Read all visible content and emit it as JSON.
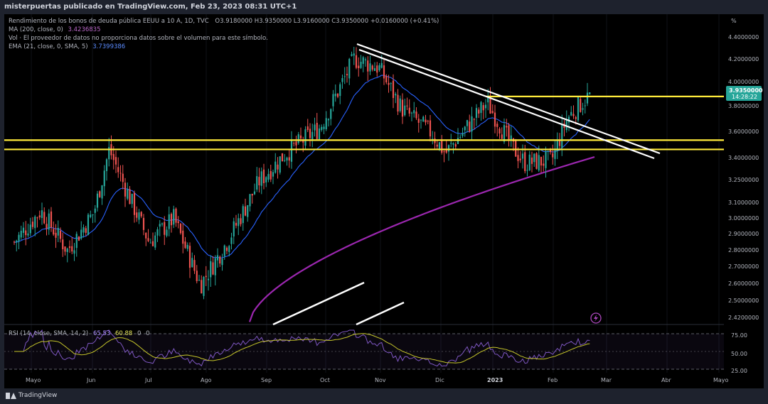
{
  "header": {
    "publisher_line": "misterpuertas publicado en TradingView.com, Feb 23, 2023 08:31 UTC+1"
  },
  "legend": {
    "title": "Rendimiento de los bonos de deuda pública EEUU a 10 A, 1D, TVC",
    "ohlc": "O3.9180000  H3.9350000  L3.9160000  C3.9350000  +0.0160000 (+0.41%)",
    "ma_label": "MA (200, close, 0)",
    "ma_value": "3.4236835",
    "vol_label": "Vol · El proveedor de datos no proporciona datos sobre el volumen para este símbolo.",
    "ema_label": "EMA (21, close, 0, SMA, 5)",
    "ema_value": "3.7399386",
    "rsi_label": "RSI (14, close, SMA, 14, 2)",
    "rsi_value": "65.53",
    "rsi_ma_value": "60.88",
    "rsi_extra_1": "0",
    "rsi_extra_2": "0"
  },
  "price_axis": {
    "unit": "%",
    "labels": [
      "4.4000000",
      "4.2000000",
      "4.0000000",
      "3.8000000",
      "3.6000000",
      "3.4000000",
      "3.2500000",
      "3.1000000",
      "3.0000000",
      "2.9000000",
      "2.8000000",
      "2.7000000",
      "2.6000000",
      "2.5000000",
      "2.4200000"
    ],
    "current_price": "3.9350000",
    "countdown": "14:28:22"
  },
  "rsi_axis": {
    "labels": [
      "75.00",
      "50.00",
      "25.00"
    ]
  },
  "time_axis": {
    "labels": [
      "Mayo",
      "Jun",
      "Jul",
      "Ago",
      "Sep",
      "Oct",
      "Nov",
      "Dic",
      "2023",
      "Feb",
      "Mar",
      "Abr",
      "Mayo"
    ]
  },
  "footer": {
    "brand": "TradingView"
  },
  "colors": {
    "background": "#000000",
    "frame": "#1e222d",
    "candle_up": "#26a69a",
    "candle_down": "#ef5350",
    "ema": "#2962ff",
    "ma200": "#9c27b0",
    "support_line": "#ffeb3b",
    "trendline": "#ffffff",
    "rsi": "#7e57c2",
    "rsi_ma": "#c5c52a",
    "price_tag": "#26a69a"
  },
  "chart_data": {
    "type": "candlestick",
    "symbol": "Rendimiento de los bonos de deuda pública EEUU a 10 A",
    "timeframe": "1D",
    "y_scale": "log",
    "ylim": [
      2.42,
      4.5
    ],
    "x_months": [
      "Mayo",
      "Jun",
      "Jul",
      "Ago",
      "Sep",
      "Oct",
      "Nov",
      "Dic",
      "2023",
      "Feb",
      "Mar",
      "Abr",
      "Mayo"
    ],
    "close_path": [
      {
        "x": "Apr 25, 2022",
        "close": 2.85
      },
      {
        "x": "May 09, 2022",
        "close": 3.05
      },
      {
        "x": "May 23, 2022",
        "close": 2.8
      },
      {
        "x": "Jun 06, 2022",
        "close": 3.04
      },
      {
        "x": "Jun 14, 2022",
        "close": 3.48
      },
      {
        "x": "Jun 21, 2022",
        "close": 3.25
      },
      {
        "x": "Jul 05, 2022",
        "close": 2.85
      },
      {
        "x": "Jul 18, 2022",
        "close": 3.0
      },
      {
        "x": "Aug 01, 2022",
        "close": 2.6
      },
      {
        "x": "Aug 15, 2022",
        "close": 2.85
      },
      {
        "x": "Sep 01, 2022",
        "close": 3.25
      },
      {
        "x": "Sep 15, 2022",
        "close": 3.45
      },
      {
        "x": "Oct 03, 2022",
        "close": 3.65
      },
      {
        "x": "Oct 21, 2022",
        "close": 4.23
      },
      {
        "x": "Nov 03, 2022",
        "close": 4.15
      },
      {
        "x": "Nov 15, 2022",
        "close": 3.8
      },
      {
        "x": "Dec 01, 2022",
        "close": 3.6
      },
      {
        "x": "Dec 08, 2022",
        "close": 3.45
      },
      {
        "x": "Dec 30, 2022",
        "close": 3.85
      },
      {
        "x": "Jan 12, 2023",
        "close": 3.5
      },
      {
        "x": "Jan 19, 2023",
        "close": 3.38
      },
      {
        "x": "Feb 02, 2023",
        "close": 3.4
      },
      {
        "x": "Feb 10, 2023",
        "close": 3.72
      },
      {
        "x": "Feb 23, 2023",
        "close": 3.935
      }
    ],
    "last_candle": {
      "open": 3.918,
      "high": 3.935,
      "low": 3.916,
      "close": 3.935,
      "change": 0.016,
      "change_pct": 0.41
    },
    "ema21_last": 3.7399386,
    "ma200_last": 3.4236835,
    "horizontal_levels": [
      3.9,
      3.55,
      3.48
    ],
    "rsi": {
      "period": 14,
      "value": 65.53,
      "ma_value": 60.88,
      "levels": [
        75,
        50,
        25
      ]
    }
  }
}
